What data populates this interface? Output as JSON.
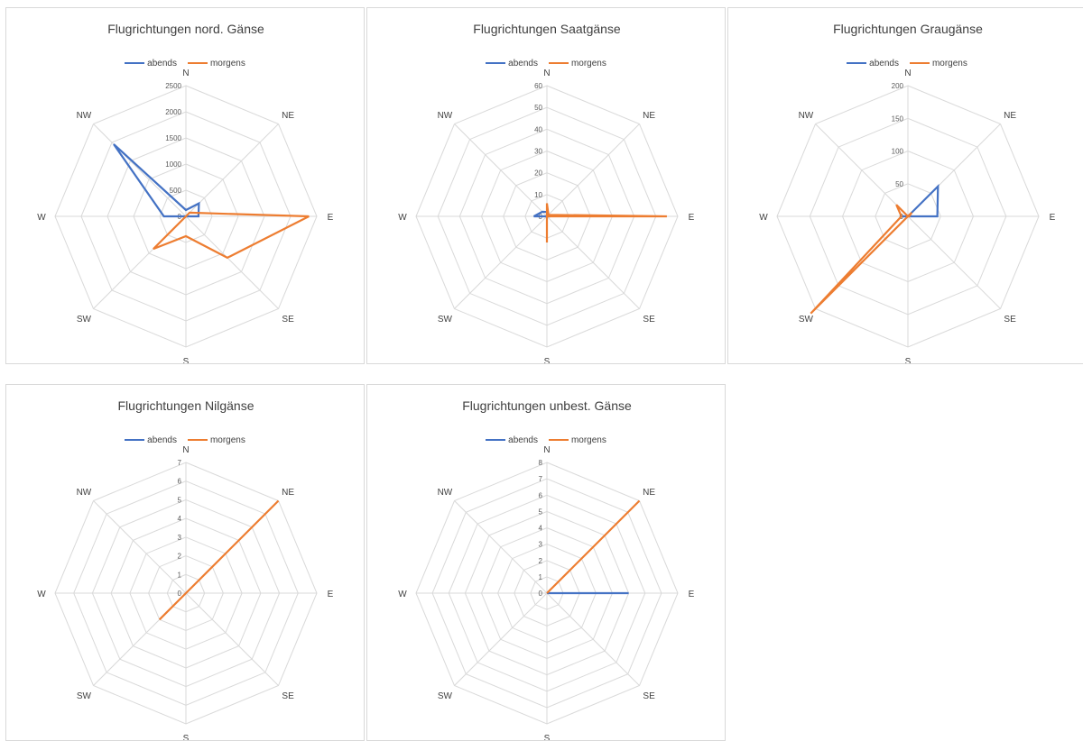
{
  "colors": {
    "abends": "#4472c4",
    "morgens": "#ed7d31",
    "grid": "#d9d9d9",
    "text": "#404040"
  },
  "chart_data": [
    {
      "type": "radar",
      "title": "Flugrichtungen nord. Gänse",
      "categories": [
        "N",
        "NE",
        "E",
        "SE",
        "S",
        "SW",
        "W",
        "NW"
      ],
      "ticks": [
        "0",
        "500",
        "1000",
        "1500",
        "2000",
        "2500"
      ],
      "rmax": 2500,
      "series": [
        {
          "name": "abends",
          "values": [
            120,
            350,
            240,
            0,
            0,
            0,
            420,
            1950
          ]
        },
        {
          "name": "morgens",
          "values": [
            0,
            100,
            2350,
            1120,
            380,
            880,
            0,
            0
          ]
        }
      ]
    },
    {
      "type": "radar",
      "title": "Flugrichtungen Saatgänse",
      "categories": [
        "N",
        "NE",
        "E",
        "SE",
        "S",
        "SW",
        "W",
        "NW"
      ],
      "ticks": [
        "0",
        "10",
        "20",
        "30",
        "40",
        "50",
        "60"
      ],
      "rmax": 60,
      "series": [
        {
          "name": "abends",
          "values": [
            2,
            1,
            1,
            0,
            0,
            0,
            6,
            3
          ]
        },
        {
          "name": "morgens",
          "values": [
            6,
            1,
            55,
            0,
            12,
            0,
            0,
            0
          ]
        }
      ]
    },
    {
      "type": "radar",
      "title": "Flugrichtungen Graugänse",
      "categories": [
        "N",
        "NE",
        "E",
        "SE",
        "S",
        "SW",
        "W",
        "NW"
      ],
      "ticks": [
        "0",
        "50",
        "100",
        "150",
        "200"
      ],
      "rmax": 200,
      "series": [
        {
          "name": "abends",
          "values": [
            0,
            65,
            45,
            0,
            0,
            0,
            10,
            0
          ]
        },
        {
          "name": "morgens",
          "values": [
            0,
            8,
            2,
            0,
            0,
            210,
            10,
            25
          ]
        }
      ]
    },
    {
      "type": "radar",
      "title": "Flugrichtungen Nilgänse",
      "categories": [
        "N",
        "NE",
        "E",
        "SE",
        "S",
        "SW",
        "W",
        "NW"
      ],
      "ticks": [
        "0",
        "1",
        "2",
        "3",
        "4",
        "5",
        "6",
        "7"
      ],
      "rmax": 7,
      "series": [
        {
          "name": "abends",
          "values": [
            0,
            0,
            0,
            0,
            0,
            0,
            0,
            0
          ]
        },
        {
          "name": "morgens",
          "values": [
            0,
            7,
            0,
            0,
            0,
            2,
            0,
            0
          ]
        }
      ]
    },
    {
      "type": "radar",
      "title": "Flugrichtungen unbest. Gänse",
      "categories": [
        "N",
        "NE",
        "E",
        "SE",
        "S",
        "SW",
        "W",
        "NW"
      ],
      "ticks": [
        "0",
        "1",
        "2",
        "3",
        "4",
        "5",
        "6",
        "7",
        "8"
      ],
      "rmax": 8,
      "series": [
        {
          "name": "abends",
          "values": [
            0,
            0,
            5,
            0,
            0,
            0,
            0,
            0
          ]
        },
        {
          "name": "morgens",
          "values": [
            0,
            8,
            0,
            0,
            0,
            0,
            0,
            0
          ]
        }
      ]
    }
  ]
}
